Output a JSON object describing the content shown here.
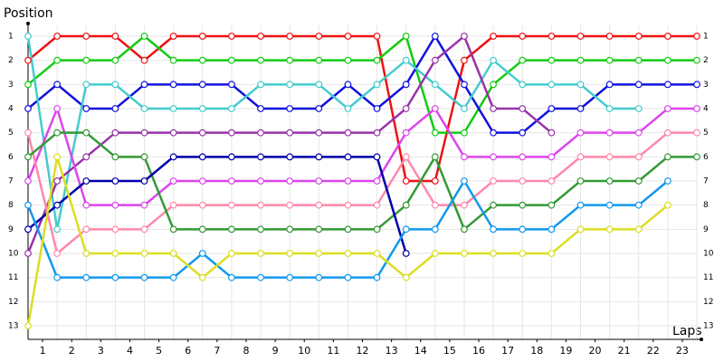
{
  "chart_data": {
    "type": "line",
    "y_label": "Position",
    "x_label": "Laps",
    "xlim": [
      0,
      23
    ],
    "xticks": [
      1,
      2,
      3,
      4,
      5,
      6,
      7,
      8,
      9,
      10,
      11,
      12,
      13,
      14,
      15,
      16,
      17,
      18,
      19,
      20,
      21,
      22,
      23
    ],
    "ylim": [
      1,
      13
    ],
    "yticks": [
      1,
      2,
      3,
      4,
      5,
      6,
      7,
      8,
      9,
      10,
      11,
      12,
      13
    ],
    "y_inverted": true,
    "grid": true,
    "series": [
      {
        "color": "#ee1111",
        "values": [
          2,
          1,
          1,
          1,
          2,
          1,
          1,
          1,
          1,
          1,
          1,
          1,
          1,
          7,
          7,
          2,
          1,
          1,
          1,
          1,
          1,
          1,
          1,
          1
        ]
      },
      {
        "color": "#11cc11",
        "values": [
          3,
          2,
          2,
          2,
          1,
          2,
          2,
          2,
          2,
          2,
          2,
          2,
          2,
          1,
          5,
          5,
          3,
          2,
          2,
          2,
          2,
          2,
          2,
          2
        ]
      },
      {
        "color": "#1111dd",
        "values": [
          4,
          3,
          4,
          4,
          3,
          3,
          3,
          3,
          4,
          4,
          4,
          3,
          4,
          3,
          1,
          3,
          5,
          5,
          4,
          4,
          3,
          3,
          3,
          3
        ]
      },
      {
        "color": "#44cccc",
        "values": [
          1,
          9,
          3,
          3,
          4,
          4,
          4,
          4,
          3,
          3,
          3,
          4,
          3,
          2,
          3,
          4,
          2,
          3,
          3,
          3,
          4,
          4,
          null,
          null
        ]
      },
      {
        "color": "#9933aa",
        "values": [
          10,
          7,
          6,
          5,
          5,
          5,
          5,
          5,
          5,
          5,
          5,
          5,
          5,
          4,
          2,
          1,
          4,
          4,
          5,
          null,
          null,
          null,
          null,
          null
        ]
      },
      {
        "color": "#dd44ee",
        "values": [
          7,
          4,
          8,
          8,
          8,
          7,
          7,
          7,
          7,
          7,
          7,
          7,
          7,
          5,
          4,
          6,
          6,
          6,
          6,
          5,
          5,
          5,
          4,
          4
        ]
      },
      {
        "color": "#ff88aa",
        "values": [
          5,
          10,
          9,
          9,
          9,
          8,
          8,
          8,
          8,
          8,
          8,
          8,
          8,
          6,
          8,
          8,
          7,
          7,
          7,
          6,
          6,
          6,
          5,
          5
        ]
      },
      {
        "color": "#339933",
        "values": [
          6,
          5,
          5,
          6,
          6,
          9,
          9,
          9,
          9,
          9,
          9,
          9,
          9,
          8,
          6,
          9,
          8,
          8,
          8,
          7,
          7,
          7,
          6,
          6
        ]
      },
      {
        "color": "#0000aa",
        "values": [
          9,
          8,
          7,
          7,
          7,
          6,
          6,
          6,
          6,
          6,
          6,
          6,
          6,
          10,
          null,
          null,
          null,
          null,
          null,
          null,
          null,
          null,
          null,
          null
        ]
      },
      {
        "color": "#1199ee",
        "values": [
          8,
          11,
          11,
          11,
          11,
          11,
          10,
          11,
          11,
          11,
          11,
          11,
          11,
          9,
          9,
          7,
          9,
          9,
          9,
          8,
          8,
          8,
          7,
          null
        ]
      },
      {
        "color": "#dddd22",
        "values": [
          13,
          6,
          10,
          10,
          10,
          10,
          11,
          10,
          10,
          10,
          10,
          10,
          10,
          11,
          10,
          10,
          10,
          10,
          10,
          9,
          9,
          9,
          8,
          null
        ]
      }
    ]
  }
}
